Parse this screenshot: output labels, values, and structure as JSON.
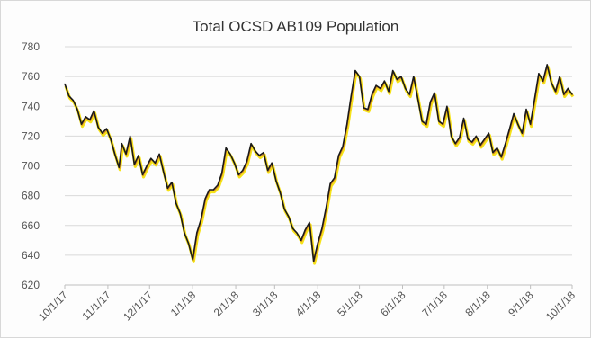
{
  "chart_data": {
    "type": "line",
    "title": "Total OCSD AB109 Population",
    "xlabel": "",
    "ylabel": "",
    "ylim": [
      620,
      780
    ],
    "yticks": [
      620,
      640,
      660,
      680,
      700,
      720,
      740,
      760,
      780
    ],
    "xlim": [
      "2017-10-01",
      "2018-10-01"
    ],
    "xticks": [
      {
        "date": "2017-10-01",
        "label": "10/1/17"
      },
      {
        "date": "2017-11-01",
        "label": "11/1/17"
      },
      {
        "date": "2017-12-01",
        "label": "12/1/17"
      },
      {
        "date": "2018-01-01",
        "label": "1/1/18"
      },
      {
        "date": "2018-02-01",
        "label": "2/1/18"
      },
      {
        "date": "2018-03-01",
        "label": "3/1/18"
      },
      {
        "date": "2018-04-01",
        "label": "4/1/18"
      },
      {
        "date": "2018-05-01",
        "label": "5/1/18"
      },
      {
        "date": "2018-06-01",
        "label": "6/1/18"
      },
      {
        "date": "2018-07-01",
        "label": "7/1/18"
      },
      {
        "date": "2018-08-01",
        "label": "8/1/18"
      },
      {
        "date": "2018-09-01",
        "label": "9/1/18"
      },
      {
        "date": "2018-10-01",
        "label": "10/1/18"
      }
    ],
    "grid": true,
    "legend": "none",
    "colors": {
      "line": "#1a1a1a",
      "shadow": "#f5e000",
      "grid": "#d9d9d9"
    },
    "series": [
      {
        "points": [
          [
            "2017-10-01",
            755
          ],
          [
            "2017-10-04",
            747
          ],
          [
            "2017-10-07",
            744
          ],
          [
            "2017-10-10",
            738
          ],
          [
            "2017-10-13",
            728
          ],
          [
            "2017-10-16",
            733
          ],
          [
            "2017-10-19",
            731
          ],
          [
            "2017-10-22",
            737
          ],
          [
            "2017-10-25",
            726
          ],
          [
            "2017-10-28",
            722
          ],
          [
            "2017-10-31",
            725
          ],
          [
            "2017-11-03",
            718
          ],
          [
            "2017-11-06",
            708
          ],
          [
            "2017-11-09",
            699
          ],
          [
            "2017-11-11",
            715
          ],
          [
            "2017-11-14",
            708
          ],
          [
            "2017-11-17",
            720
          ],
          [
            "2017-11-20",
            701
          ],
          [
            "2017-11-23",
            707
          ],
          [
            "2017-11-26",
            694
          ],
          [
            "2017-11-29",
            700
          ],
          [
            "2017-12-02",
            705
          ],
          [
            "2017-12-05",
            702
          ],
          [
            "2017-12-08",
            708
          ],
          [
            "2017-12-11",
            696
          ],
          [
            "2017-12-14",
            685
          ],
          [
            "2017-12-17",
            689
          ],
          [
            "2017-12-20",
            675
          ],
          [
            "2017-12-23",
            668
          ],
          [
            "2017-12-26",
            655
          ],
          [
            "2017-12-29",
            648
          ],
          [
            "2018-01-01",
            637
          ],
          [
            "2018-01-04",
            655
          ],
          [
            "2018-01-07",
            664
          ],
          [
            "2018-01-10",
            678
          ],
          [
            "2018-01-13",
            684
          ],
          [
            "2018-01-16",
            684
          ],
          [
            "2018-01-19",
            687
          ],
          [
            "2018-01-22",
            695
          ],
          [
            "2018-01-25",
            712
          ],
          [
            "2018-01-28",
            708
          ],
          [
            "2018-01-31",
            702
          ],
          [
            "2018-02-03",
            694
          ],
          [
            "2018-02-06",
            697
          ],
          [
            "2018-02-09",
            703
          ],
          [
            "2018-02-12",
            715
          ],
          [
            "2018-02-15",
            710
          ],
          [
            "2018-02-18",
            707
          ],
          [
            "2018-02-21",
            709
          ],
          [
            "2018-02-24",
            697
          ],
          [
            "2018-02-27",
            702
          ],
          [
            "2018-03-02",
            690
          ],
          [
            "2018-03-05",
            682
          ],
          [
            "2018-03-08",
            671
          ],
          [
            "2018-03-11",
            666
          ],
          [
            "2018-03-14",
            658
          ],
          [
            "2018-03-17",
            655
          ],
          [
            "2018-03-20",
            650
          ],
          [
            "2018-03-23",
            657
          ],
          [
            "2018-03-26",
            662
          ],
          [
            "2018-03-29",
            636
          ],
          [
            "2018-04-01",
            648
          ],
          [
            "2018-04-04",
            658
          ],
          [
            "2018-04-07",
            672
          ],
          [
            "2018-04-10",
            688
          ],
          [
            "2018-04-13",
            692
          ],
          [
            "2018-04-16",
            707
          ],
          [
            "2018-04-19",
            713
          ],
          [
            "2018-04-22",
            728
          ],
          [
            "2018-04-25",
            747
          ],
          [
            "2018-04-28",
            764
          ],
          [
            "2018-05-01",
            760
          ],
          [
            "2018-05-04",
            739
          ],
          [
            "2018-05-07",
            738
          ],
          [
            "2018-05-10",
            748
          ],
          [
            "2018-05-13",
            754
          ],
          [
            "2018-05-16",
            752
          ],
          [
            "2018-05-19",
            757
          ],
          [
            "2018-05-22",
            750
          ],
          [
            "2018-05-25",
            764
          ],
          [
            "2018-05-28",
            758
          ],
          [
            "2018-05-31",
            760
          ],
          [
            "2018-06-03",
            752
          ],
          [
            "2018-06-06",
            748
          ],
          [
            "2018-06-09",
            760
          ],
          [
            "2018-06-12",
            745
          ],
          [
            "2018-06-15",
            730
          ],
          [
            "2018-06-18",
            728
          ],
          [
            "2018-06-21",
            743
          ],
          [
            "2018-06-24",
            749
          ],
          [
            "2018-06-27",
            730
          ],
          [
            "2018-06-30",
            728
          ],
          [
            "2018-07-03",
            740
          ],
          [
            "2018-07-06",
            720
          ],
          [
            "2018-07-09",
            715
          ],
          [
            "2018-07-12",
            719
          ],
          [
            "2018-07-15",
            732
          ],
          [
            "2018-07-18",
            718
          ],
          [
            "2018-07-21",
            716
          ],
          [
            "2018-07-24",
            720
          ],
          [
            "2018-07-27",
            714
          ],
          [
            "2018-07-30",
            718
          ],
          [
            "2018-08-02",
            722
          ],
          [
            "2018-08-05",
            709
          ],
          [
            "2018-08-08",
            712
          ],
          [
            "2018-08-11",
            706
          ],
          [
            "2018-08-14",
            715
          ],
          [
            "2018-08-17",
            725
          ],
          [
            "2018-08-20",
            735
          ],
          [
            "2018-08-23",
            728
          ],
          [
            "2018-08-26",
            722
          ],
          [
            "2018-08-29",
            738
          ],
          [
            "2018-09-01",
            728
          ],
          [
            "2018-09-04",
            745
          ],
          [
            "2018-09-07",
            762
          ],
          [
            "2018-09-10",
            757
          ],
          [
            "2018-09-13",
            768
          ],
          [
            "2018-09-16",
            756
          ],
          [
            "2018-09-19",
            750
          ],
          [
            "2018-09-22",
            760
          ],
          [
            "2018-09-25",
            748
          ],
          [
            "2018-09-28",
            752
          ],
          [
            "2018-10-01",
            748
          ]
        ]
      }
    ]
  }
}
